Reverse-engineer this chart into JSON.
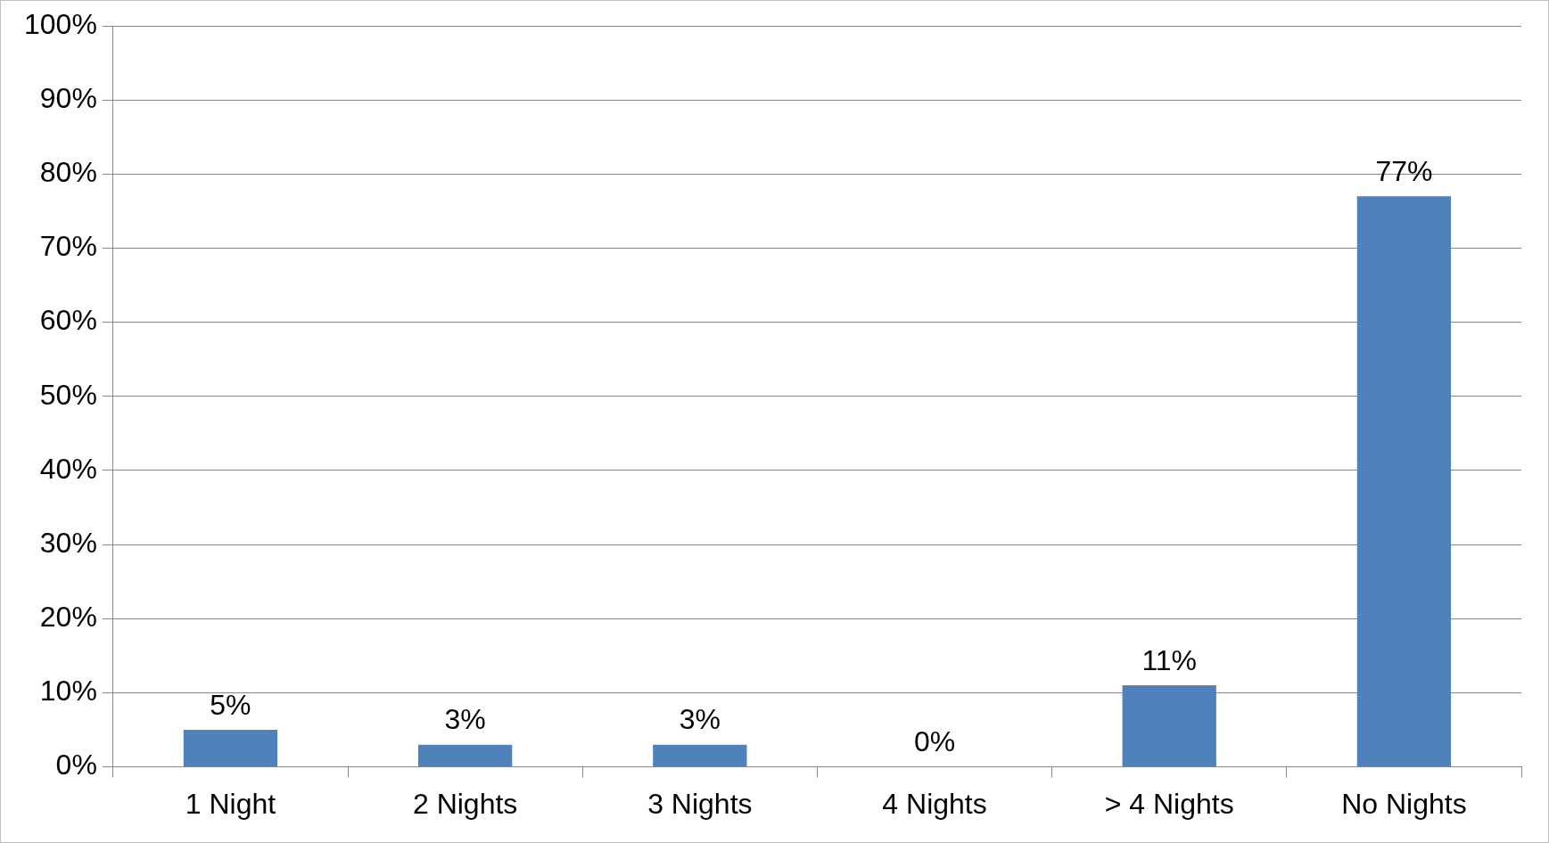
{
  "chart_data": {
    "type": "bar",
    "categories": [
      "1 Night",
      "2 Nights",
      "3 Nights",
      "4 Nights",
      "> 4 Nights",
      "No Nights"
    ],
    "values": [
      5,
      3,
      3,
      0,
      11,
      77
    ],
    "value_labels": [
      "5%",
      "3%",
      "3%",
      "0%",
      "11%",
      "77%"
    ],
    "color": "#4f81bd",
    "ylim": [
      0,
      100
    ],
    "yticks": [
      {
        "value": 0,
        "label": "0%"
      },
      {
        "value": 10,
        "label": "10%"
      },
      {
        "value": 20,
        "label": "20%"
      },
      {
        "value": 30,
        "label": "30%"
      },
      {
        "value": 40,
        "label": "40%"
      },
      {
        "value": 50,
        "label": "50%"
      },
      {
        "value": 60,
        "label": "60%"
      },
      {
        "value": 70,
        "label": "70%"
      },
      {
        "value": 80,
        "label": "80%"
      },
      {
        "value": 90,
        "label": "90%"
      },
      {
        "value": 100,
        "label": "100%"
      }
    ],
    "grid": "y"
  }
}
